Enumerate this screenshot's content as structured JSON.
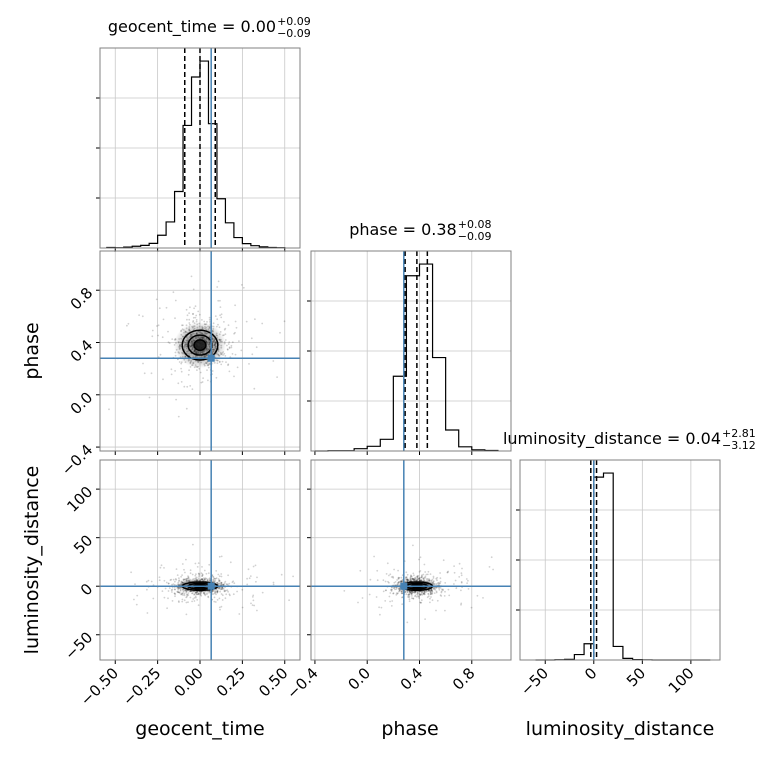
{
  "chart_data": {
    "type": "corner",
    "parameters": [
      "geocent_time",
      "phase",
      "luminosity_distance"
    ],
    "axis_labels": [
      "geocent_time",
      "phase",
      "luminosity_distance"
    ],
    "truths": {
      "geocent_time": 0.066,
      "phase": 0.28,
      "luminosity_distance": 0.0
    },
    "truth_color": "#4682b4",
    "ranges": {
      "geocent_time": [
        -0.59,
        0.59
      ],
      "phase": [
        -0.43,
        1.1
      ],
      "luminosity_distance": [
        -76,
        130
      ]
    },
    "ticks": {
      "geocent_time": {
        "values": [
          -0.5,
          -0.25,
          0.0,
          0.25,
          0.5
        ],
        "labels": [
          "−0.50",
          "−0.25",
          "0.00",
          "0.25",
          "0.50"
        ]
      },
      "phase": {
        "values": [
          -0.4,
          0.0,
          0.4,
          0.8
        ],
        "labels": [
          "−0.4",
          "0.0",
          "0.4",
          "0.8"
        ]
      },
      "luminosity_distance": {
        "values": [
          -50,
          0,
          50,
          100
        ],
        "labels": [
          "−50",
          "0",
          "50",
          "100"
        ]
      }
    },
    "titles": [
      {
        "param": "geocent_time",
        "text": "geocent_time = 0.00",
        "plus": "+0.09",
        "minus": "−0.09"
      },
      {
        "param": "phase",
        "text": "phase = 0.38",
        "plus": "+0.08",
        "minus": "−0.09"
      },
      {
        "param": "luminosity_distance",
        "text": "luminosity_distance = 0.04",
        "plus": "+2.81",
        "minus": "−3.12"
      }
    ],
    "quantiles": {
      "geocent_time": [
        -0.09,
        0.0,
        0.09
      ],
      "phase": [
        0.29,
        0.38,
        0.46
      ],
      "luminosity_distance": [
        -3.08,
        0.04,
        2.85
      ]
    },
    "histograms": {
      "geocent_time": {
        "edges": [
          -0.55,
          -0.5,
          -0.45,
          -0.4,
          -0.35,
          -0.3,
          -0.25,
          -0.2,
          -0.15,
          -0.1,
          -0.05,
          0.0,
          0.05,
          0.1,
          0.15,
          0.2,
          0.25,
          0.3,
          0.35,
          0.4,
          0.45,
          0.5
        ],
        "counts": [
          2,
          1,
          3,
          6,
          9,
          16,
          44,
          90,
          195,
          423,
          590,
          645,
          429,
          170,
          87,
          36,
          15,
          8,
          4,
          2,
          1
        ]
      },
      "phase": {
        "edges": [
          -0.4,
          -0.3,
          -0.2,
          -0.1,
          0.0,
          0.1,
          0.2,
          0.3,
          0.4,
          0.5,
          0.6,
          0.7,
          0.8,
          0.9,
          1.0
        ],
        "counts": [
          0,
          1,
          1,
          10,
          20,
          50,
          320,
          750,
          800,
          400,
          90,
          18,
          5,
          2
        ]
      },
      "luminosity_distance": {
        "edges": [
          -60,
          -50,
          -40,
          -30,
          -20,
          -10,
          0,
          10,
          20,
          30,
          40,
          50,
          60,
          70,
          80,
          90,
          100,
          110,
          120
        ],
        "counts": [
          0,
          0,
          2,
          5,
          40,
          120,
          1350,
          1380,
          100,
          12,
          3,
          1,
          0,
          0,
          0,
          0,
          0,
          0
        ]
      }
    },
    "posterior_2d": [
      {
        "x": "geocent_time",
        "y": "phase",
        "center": [
          0.0,
          0.38
        ],
        "sigma": [
          0.07,
          0.08
        ],
        "contour_levels": [
          0.5,
          1.0,
          1.5
        ]
      },
      {
        "x": "geocent_time",
        "y": "luminosity_distance",
        "center": [
          0.0,
          0.04
        ],
        "sigma": [
          0.07,
          3.0
        ],
        "contour_levels": [
          0.5,
          1.0,
          1.5
        ]
      },
      {
        "x": "phase",
        "y": "luminosity_distance",
        "center": [
          0.38,
          0.04
        ],
        "sigma": [
          0.08,
          3.0
        ],
        "contour_levels": [
          0.5,
          1.0,
          1.5
        ]
      }
    ],
    "grid": true
  }
}
